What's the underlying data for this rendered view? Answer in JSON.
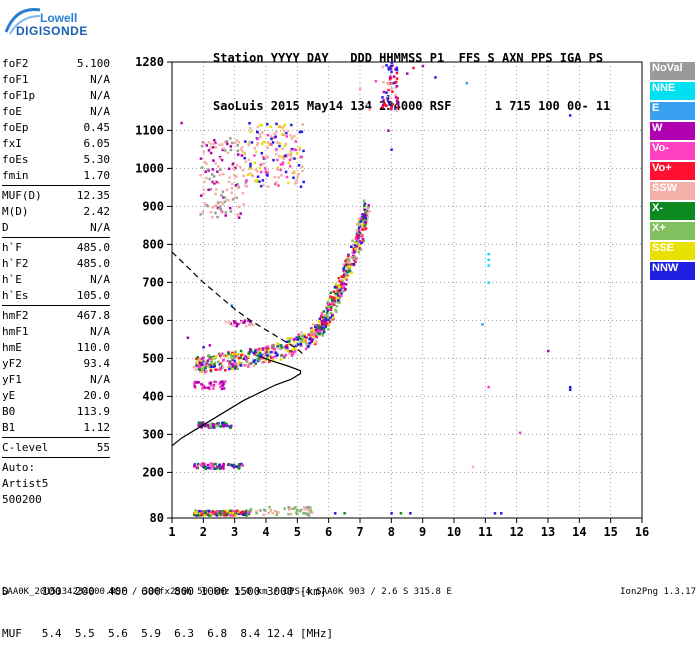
{
  "logo": {
    "line1": "Lowell",
    "line2": "DIGISONDE"
  },
  "header": {
    "line1": "Station YYYY DAY   DDD HHMMSS P1  FFS S AXN PPS IGA PS",
    "line2": "SaoLuis 2015 May14 134 234000 RSF      1 715 100 00- 11"
  },
  "params": [
    [
      {
        "name": "foF2",
        "value": "5.100"
      },
      {
        "name": "foF1",
        "value": "N/A"
      },
      {
        "name": "foF1p",
        "value": "N/A"
      },
      {
        "name": "foE",
        "value": "N/A"
      },
      {
        "name": "foEp",
        "value": "0.45"
      },
      {
        "name": "fxI",
        "value": "6.05"
      },
      {
        "name": "foEs",
        "value": "5.30"
      },
      {
        "name": "fmin",
        "value": "1.70"
      }
    ],
    [
      {
        "name": "MUF(D)",
        "value": "12.35"
      },
      {
        "name": "M(D)",
        "value": "2.42"
      },
      {
        "name": "D",
        "value": "N/A"
      }
    ],
    [
      {
        "name": "h`F",
        "value": "485.0"
      },
      {
        "name": "h`F2",
        "value": "485.0"
      },
      {
        "name": "h`E",
        "value": "N/A"
      },
      {
        "name": "h`Es",
        "value": "105.0"
      }
    ],
    [
      {
        "name": "hmF2",
        "value": "467.8"
      },
      {
        "name": "hmF1",
        "value": "N/A"
      },
      {
        "name": "hmE",
        "value": "110.0"
      },
      {
        "name": "yF2",
        "value": "93.4"
      },
      {
        "name": "yF1",
        "value": "N/A"
      },
      {
        "name": "yE",
        "value": "20.0"
      },
      {
        "name": "B0",
        "value": "113.9"
      },
      {
        "name": "B1",
        "value": "1.12"
      }
    ],
    [
      {
        "name": "C-level",
        "value": "55"
      }
    ]
  ],
  "auto": {
    "line1": "Auto:",
    "line2": "Artist5",
    "line3": "500200"
  },
  "footer": {
    "d_line": "D     100  200  400  600  800 1000 1500 3000 [km]",
    "muf_line": "MUF   5.4  5.5  5.6  5.9  6.3  6.8  8.4 12.4 [MHz]"
  },
  "bottom": {
    "text": "SAA0K_2015134234000.RSF / 300fx256h 50 kHz 5.0 km / DPS-4 SAA0K 903 / 2.6 S 315.8 E",
    "version": "Ion2Png 1.3.17"
  },
  "legend": [
    {
      "label": "NoVal",
      "color": "#9a9a9a"
    },
    {
      "label": "NNE",
      "color": "#00e0f0"
    },
    {
      "label": "E",
      "color": "#3aa0f0"
    },
    {
      "label": "W",
      "color": "#b000b0"
    },
    {
      "label": "Vo-",
      "color": "#ff40c0"
    },
    {
      "label": "Vo+",
      "color": "#ff1030"
    },
    {
      "label": "SSW",
      "color": "#f4b0a8"
    },
    {
      "label": "X-",
      "color": "#0c8a20"
    },
    {
      "label": "X+",
      "color": "#80c060"
    },
    {
      "label": "SSE",
      "color": "#e8e000"
    },
    {
      "label": "NNW",
      "color": "#2020e0"
    }
  ],
  "chart_data": {
    "type": "scatter",
    "xlim": [
      1,
      16
    ],
    "ylim": [
      80,
      1280
    ],
    "x_ticks": [
      1,
      2,
      3,
      4,
      5,
      6,
      7,
      8,
      9,
      10,
      11,
      12,
      13,
      14,
      15,
      16
    ],
    "y_ticks": [
      80,
      200,
      300,
      400,
      500,
      600,
      700,
      800,
      900,
      1000,
      1100,
      1280
    ],
    "grid": true,
    "xlabel": "",
    "ylabel": "",
    "clusters": [
      {
        "x": [
          1.7,
          3.5
        ],
        "y": [
          87,
          100
        ],
        "colors": [
          "#ff40c0",
          "#0c8a20",
          "#2020e0",
          "#e8e000",
          "#ff1030"
        ],
        "n": 160
      },
      {
        "x": [
          3.5,
          5.5
        ],
        "y": [
          87,
          110
        ],
        "colors": [
          "#f4b0a8",
          "#9a9a9a",
          "#80c060"
        ],
        "n": 50
      },
      {
        "x": [
          1.7,
          3.3
        ],
        "y": [
          210,
          225
        ],
        "colors": [
          "#ff40c0",
          "#0c8a20",
          "#2020e0",
          "#b000b0"
        ],
        "n": 70
      },
      {
        "x": [
          1.8,
          2.9
        ],
        "y": [
          318,
          332
        ],
        "colors": [
          "#2020e0",
          "#b000b0",
          "#0c8a20",
          "#80c060"
        ],
        "n": 50
      },
      {
        "x": [
          1.7,
          2.7
        ],
        "y": [
          420,
          440
        ],
        "colors": [
          "#ff40c0",
          "#b000b0"
        ],
        "n": 35
      },
      {
        "x": [
          2.7,
          3.6
        ],
        "y": [
          585,
          600
        ],
        "colors": [
          "#f4b0a8",
          "#b000b0"
        ],
        "n": 25
      },
      {
        "x": [
          1.9,
          3.3
        ],
        "y": [
          870,
          1080
        ],
        "colors": [
          "#f4b0a8",
          "#f4b0a8",
          "#b000b0",
          "#9a9a9a"
        ],
        "n": 140
      },
      {
        "x": [
          3.3,
          5.2
        ],
        "y": [
          950,
          1120
        ],
        "colors": [
          "#f4b0a8",
          "#f4b0a8",
          "#ff40c0",
          "#e8e000",
          "#2020e0"
        ],
        "n": 180
      },
      {
        "x": [
          7.7,
          8.2
        ],
        "y": [
          1150,
          1280
        ],
        "colors": [
          "#f4b0a8",
          "#2020e0",
          "#b000b0",
          "#ff1030"
        ],
        "n": 60
      }
    ],
    "f_trace": [
      [
        1.8,
        465
      ],
      [
        2.0,
        468
      ],
      [
        2.5,
        472
      ],
      [
        3.0,
        478
      ],
      [
        3.5,
        485
      ],
      [
        4.0,
        492
      ],
      [
        4.5,
        505
      ],
      [
        5.0,
        520
      ],
      [
        5.5,
        545
      ],
      [
        5.8,
        570
      ],
      [
        6.0,
        600
      ],
      [
        6.2,
        640
      ],
      [
        6.4,
        680
      ],
      [
        6.6,
        720
      ],
      [
        6.8,
        760
      ],
      [
        7.0,
        810
      ],
      [
        7.1,
        850
      ],
      [
        7.2,
        880
      ]
    ],
    "profile_solid": [
      [
        1.0,
        270
      ],
      [
        1.3,
        290
      ],
      [
        1.8,
        315
      ],
      [
        2.3,
        340
      ],
      [
        2.8,
        365
      ],
      [
        3.3,
        390
      ],
      [
        3.8,
        410
      ],
      [
        4.3,
        430
      ],
      [
        4.8,
        445
      ],
      [
        5.1,
        460
      ],
      [
        5.1,
        467.8
      ],
      [
        4.7,
        480
      ],
      [
        4.2,
        493
      ],
      [
        3.8,
        505
      ]
    ],
    "profile_dashed": [
      [
        1.0,
        780
      ],
      [
        1.5,
        740
      ],
      [
        2.0,
        700
      ],
      [
        2.5,
        665
      ],
      [
        3.0,
        630
      ],
      [
        3.5,
        600
      ],
      [
        4.0,
        575
      ],
      [
        4.5,
        550
      ],
      [
        5.0,
        525
      ],
      [
        5.2,
        510
      ]
    ],
    "scatter_points": [
      {
        "x": 9.0,
        "y": 1270,
        "color": "#b000b0"
      },
      {
        "x": 9.4,
        "y": 1240,
        "color": "#2020e0"
      },
      {
        "x": 10.4,
        "y": 1225,
        "color": "#3aa0f0"
      },
      {
        "x": 13.7,
        "y": 1140,
        "color": "#2020e0"
      },
      {
        "x": 11.1,
        "y": 775,
        "color": "#00e0f0"
      },
      {
        "x": 11.1,
        "y": 760,
        "color": "#00e0f0"
      },
      {
        "x": 11.1,
        "y": 745,
        "color": "#00e0f0"
      },
      {
        "x": 11.1,
        "y": 700,
        "color": "#00e0f0"
      },
      {
        "x": 10.9,
        "y": 590,
        "color": "#3aa0f0"
      },
      {
        "x": 13.0,
        "y": 520,
        "color": "#b000b0"
      },
      {
        "x": 13.7,
        "y": 425,
        "color": "#2020e0"
      },
      {
        "x": 13.7,
        "y": 418,
        "color": "#2020e0"
      },
      {
        "x": 11.1,
        "y": 425,
        "color": "#ff40c0"
      },
      {
        "x": 12.1,
        "y": 305,
        "color": "#ff40c0"
      },
      {
        "x": 10.6,
        "y": 215,
        "color": "#f4b0a8"
      },
      {
        "x": 11.3,
        "y": 93,
        "color": "#2020e0"
      },
      {
        "x": 11.5,
        "y": 93,
        "color": "#2020e0"
      },
      {
        "x": 6.2,
        "y": 93,
        "color": "#2020e0"
      },
      {
        "x": 6.5,
        "y": 93,
        "color": "#0c8a20"
      },
      {
        "x": 8.0,
        "y": 93,
        "color": "#2020e0"
      },
      {
        "x": 8.3,
        "y": 93,
        "color": "#0c8a20"
      },
      {
        "x": 8.6,
        "y": 93,
        "color": "#2020e0"
      },
      {
        "x": 1.3,
        "y": 1120,
        "color": "#b000b0"
      },
      {
        "x": 1.5,
        "y": 555,
        "color": "#b000b0"
      },
      {
        "x": 2.0,
        "y": 530,
        "color": "#2020e0"
      },
      {
        "x": 2.2,
        "y": 535,
        "color": "#b000b0"
      },
      {
        "x": 2.9,
        "y": 640,
        "color": "#3aa0f0"
      },
      {
        "x": 8.0,
        "y": 1050,
        "color": "#2020e0"
      },
      {
        "x": 7.9,
        "y": 1100,
        "color": "#b000b0"
      },
      {
        "x": 7.2,
        "y": 1170,
        "color": "#f4b0a8"
      },
      {
        "x": 7.0,
        "y": 1210,
        "color": "#f4b0a8"
      },
      {
        "x": 7.3,
        "y": 1155,
        "color": "#f4b0a8"
      },
      {
        "x": 7.5,
        "y": 1230,
        "color": "#ff40c0"
      },
      {
        "x": 8.5,
        "y": 1250,
        "color": "#b000b0"
      },
      {
        "x": 8.7,
        "y": 1265,
        "color": "#ff1030"
      }
    ]
  }
}
